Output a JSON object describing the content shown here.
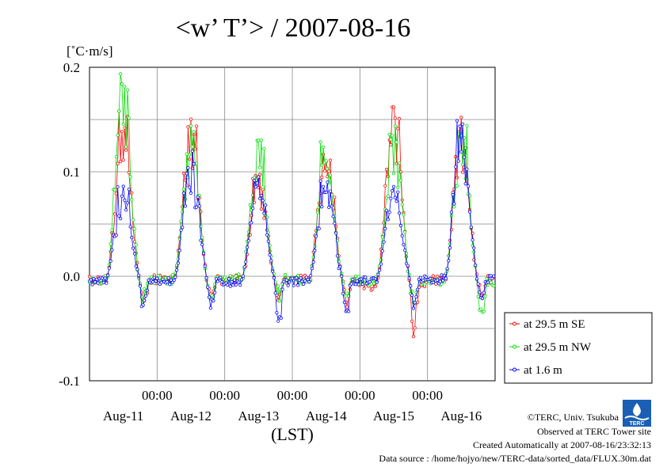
{
  "chart_data": {
    "type": "line",
    "title": "<w’ T’> / 2007-08-16",
    "ylabel": "[˚C·m/s]",
    "xlabel": "(LST)",
    "ylim": [
      -0.1,
      0.2
    ],
    "yticks": [
      "0.2",
      "0.1",
      "0.0",
      "-0.1"
    ],
    "ytick_values": [
      0.2,
      0.1,
      0.0,
      -0.1
    ],
    "xlim_days": [
      0,
      6
    ],
    "xtick_time_label": "00:00",
    "xtick_day_labels": [
      "Aug-11",
      "Aug-12",
      "Aug-13",
      "Aug-14",
      "Aug-15",
      "Aug-16"
    ],
    "grid": true,
    "legend_position": "right-bottom",
    "series": [
      {
        "name": "at 29.5 m SE",
        "color": "#ff0000",
        "daily_peaks": [
          0.16,
          0.148,
          0.1,
          0.137,
          0.165,
          0.15
        ],
        "daily_mins": [
          -0.028,
          -0.028,
          -0.018,
          -0.028,
          -0.06,
          -0.024
        ]
      },
      {
        "name": "at 29.5 m NW",
        "color": "#00dd00",
        "daily_peaks": [
          0.192,
          0.145,
          0.132,
          0.14,
          0.148,
          0.148
        ],
        "daily_mins": [
          -0.024,
          -0.024,
          -0.02,
          -0.025,
          -0.035,
          -0.045
        ]
      },
      {
        "name": "at 1.6 m",
        "color": "#0000ff",
        "daily_peaks": [
          0.09,
          0.12,
          0.1,
          0.1,
          0.1,
          0.148
        ],
        "daily_mins": [
          -0.032,
          -0.038,
          -0.045,
          -0.038,
          -0.03,
          -0.024
        ]
      }
    ]
  },
  "footer": {
    "copyright": "©TERC, Univ. Tsukuba",
    "observed": "Observed at TERC Tower site",
    "created": "Created Automatically at 2007-08-16/23:32:13",
    "source": "Data source : /home/hojyo/new/TERC-data/sorted_data/FLUX.30m.dat"
  },
  "logo": {
    "text": "TERC",
    "color": "#1a5fb4"
  }
}
